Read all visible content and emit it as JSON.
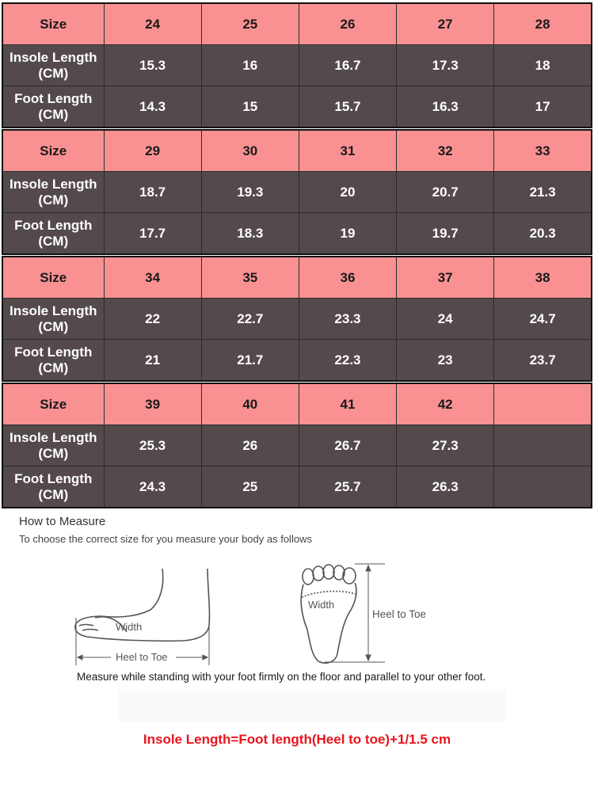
{
  "size_chart": {
    "row_labels": {
      "size": "Size",
      "insole_a": "Insole Length",
      "insole_b": "(CM)",
      "foot_a": "Foot Length",
      "foot_b": "(CM)"
    },
    "blocks": [
      {
        "sizes": [
          "24",
          "25",
          "26",
          "27",
          "28"
        ],
        "insole": [
          "15.3",
          "16",
          "16.7",
          "17.3",
          "18"
        ],
        "foot": [
          "14.3",
          "15",
          "15.7",
          "16.3",
          "17"
        ]
      },
      {
        "sizes": [
          "29",
          "30",
          "31",
          "32",
          "33"
        ],
        "insole": [
          "18.7",
          "19.3",
          "20",
          "20.7",
          "21.3"
        ],
        "foot": [
          "17.7",
          "18.3",
          "19",
          "19.7",
          "20.3"
        ]
      },
      {
        "sizes": [
          "34",
          "35",
          "36",
          "37",
          "38"
        ],
        "insole": [
          "22",
          "22.7",
          "23.3",
          "24",
          "24.7"
        ],
        "foot": [
          "21",
          "21.7",
          "22.3",
          "23",
          "23.7"
        ]
      },
      {
        "sizes": [
          "39",
          "40",
          "41",
          "42",
          ""
        ],
        "insole": [
          "25.3",
          "26",
          "26.7",
          "27.3",
          ""
        ],
        "foot": [
          "24.3",
          "25",
          "25.7",
          "26.3",
          ""
        ]
      }
    ]
  },
  "measure": {
    "title": "How to Measure",
    "subtitle": "To choose the correct size for you measure your body as follows",
    "side_width_label": "Width",
    "side_length_label": "Heel to Toe",
    "top_width_label": "Width",
    "top_length_label": "Heel to Toe",
    "note": "Measure while standing with your foot firmly on the floor and parallel to your other foot.",
    "formula": "Insole Length=Foot length(Heel to toe)+1/1.5 cm"
  },
  "colors": {
    "size_row_bg": "#f99193",
    "data_row_bg": "#544a4b",
    "formula_text": "#e8141b"
  }
}
